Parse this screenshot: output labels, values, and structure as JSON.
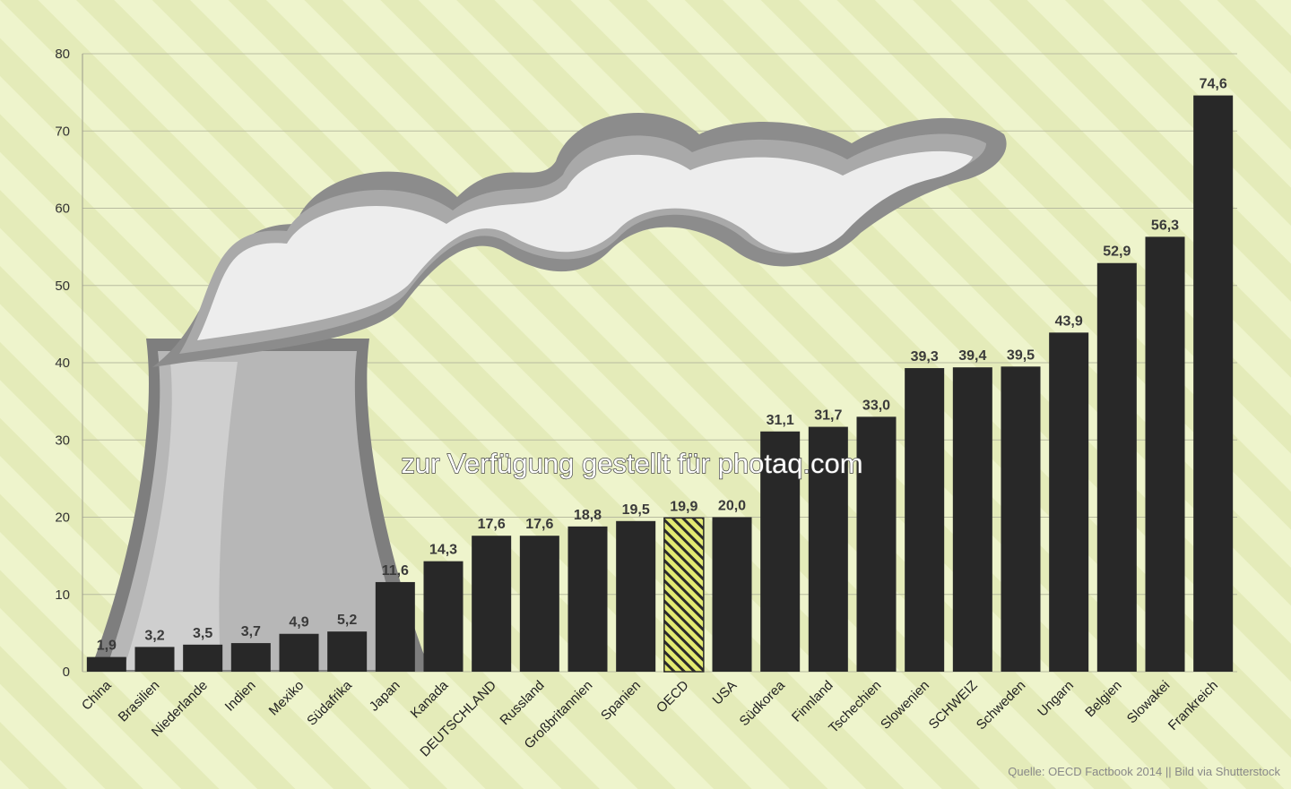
{
  "chart_data": {
    "type": "bar",
    "categories": [
      "China",
      "Brasilien",
      "Niederlande",
      "Indien",
      "Mexiko",
      "Südafrika",
      "Japan",
      "Kanada",
      "DEUTSCHLAND",
      "Russland",
      "Großbritannien",
      "Spanien",
      "OECD",
      "USA",
      "Südkorea",
      "Finnland",
      "Tschechien",
      "Slowenien",
      "SCHWEIZ",
      "Schweden",
      "Ungarn",
      "Belgien",
      "Slowakei",
      "Frankreich"
    ],
    "values": [
      1.9,
      3.2,
      3.5,
      3.7,
      4.9,
      5.2,
      11.6,
      14.3,
      17.6,
      17.6,
      18.8,
      19.5,
      19.9,
      20.0,
      31.1,
      31.7,
      33.0,
      39.3,
      39.4,
      39.5,
      43.9,
      52.9,
      56.3,
      74.6
    ],
    "value_labels": [
      "1,9",
      "3,2",
      "3,5",
      "3,7",
      "4,9",
      "5,2",
      "11,6",
      "14,3",
      "17,6",
      "17,6",
      "18,8",
      "19,5",
      "19,9",
      "20,0",
      "31,1",
      "31,7",
      "33,0",
      "39,3",
      "39,4",
      "39,5",
      "43,9",
      "52,9",
      "56,3",
      "74,6"
    ],
    "highlight_category": "OECD",
    "ylim": [
      0,
      80
    ],
    "yticks": [
      0,
      10,
      20,
      30,
      40,
      50,
      60,
      70,
      80
    ],
    "grid": true,
    "colors": {
      "bar": "#282828",
      "highlight": "#e3ea72",
      "background": "#eef4cc",
      "stripe": "#e4ebb9",
      "grid": "#b8bba0"
    },
    "watermark": "zur Verfügung gestellt für photaq.com",
    "source": "Quelle: OECD Factbook 2014 || Bild via Shutterstock"
  }
}
